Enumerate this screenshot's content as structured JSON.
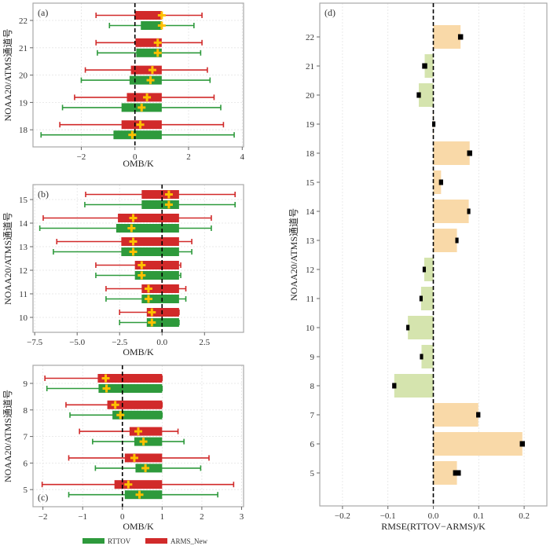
{
  "colors": {
    "rttov": "#2e9a3c",
    "arms": "#d12a2a",
    "mean_marker": "#ffc000",
    "positive_bar": "#f9d9a8",
    "negative_bar": "#d5e4ae",
    "error_bar": "#000000",
    "grid": "#e4e4e4",
    "frame": "#a8a8a8"
  },
  "legend": [
    {
      "key": "rttov",
      "label": "RTTOV"
    },
    {
      "key": "arms",
      "label": "ARMS_New"
    }
  ],
  "chart_data": [
    {
      "type": "boxplot",
      "panel": "(a)",
      "xlabel": "OMB/K",
      "ylabel": "NOAA20/ATMS通道号",
      "xlim": [
        -3.8,
        4.05
      ],
      "xticks": [
        -2,
        0,
        2,
        4
      ],
      "xtick_labels": [
        "−2",
        "0",
        "2",
        "4"
      ],
      "categories": [
        "22",
        "21",
        "20",
        "19",
        "18"
      ],
      "reference_line": 0,
      "series": [
        {
          "name": "ARMS_New",
          "key": "arms",
          "items": [
            {
              "channel": "22",
              "whisker": [
                -1.45,
                2.5
              ],
              "box": [
                0.0,
                1.0
              ],
              "mean": 1.0
            },
            {
              "channel": "21",
              "whisker": [
                -1.45,
                2.5
              ],
              "box": [
                0.02,
                1.0
              ],
              "mean": 0.85
            },
            {
              "channel": "20",
              "whisker": [
                -1.85,
                2.7
              ],
              "box": [
                -0.15,
                1.0
              ],
              "mean": 0.65
            },
            {
              "channel": "19",
              "whisker": [
                -2.25,
                2.95
              ],
              "box": [
                -0.3,
                1.0
              ],
              "mean": 0.45
            },
            {
              "channel": "18",
              "whisker": [
                -2.8,
                3.3
              ],
              "box": [
                -0.5,
                1.0
              ],
              "mean": 0.2
            }
          ]
        },
        {
          "name": "RTTOV",
          "key": "rttov",
          "items": [
            {
              "channel": "22",
              "whisker": [
                -0.95,
                2.2
              ],
              "box": [
                0.22,
                1.0
              ],
              "mean": 1.0
            },
            {
              "channel": "21",
              "whisker": [
                -1.4,
                2.45
              ],
              "box": [
                0.05,
                1.0
              ],
              "mean": 0.85
            },
            {
              "channel": "20",
              "whisker": [
                -2.0,
                2.8
              ],
              "box": [
                -0.2,
                1.0
              ],
              "mean": 0.58
            },
            {
              "channel": "19",
              "whisker": [
                -2.7,
                3.2
              ],
              "box": [
                -0.5,
                1.0
              ],
              "mean": 0.25
            },
            {
              "channel": "18",
              "whisker": [
                -3.5,
                3.7
              ],
              "box": [
                -0.8,
                1.0
              ],
              "mean": -0.1
            }
          ]
        }
      ]
    },
    {
      "type": "boxplot",
      "panel": "(b)",
      "xlabel": "OMB/K",
      "ylabel": "NOAA20/ATMS通道号",
      "xlim": [
        -7.6,
        4.8
      ],
      "xticks": [
        -7.5,
        -5.0,
        -2.5,
        0.0,
        2.5
      ],
      "xtick_labels": [
        "−7.5",
        "−5.0",
        "−2.5",
        "0.0",
        "2.5"
      ],
      "categories": [
        "15",
        "14",
        "13",
        "12",
        "11",
        "10"
      ],
      "reference_line": 0,
      "series": [
        {
          "name": "ARMS_New",
          "key": "arms",
          "items": [
            {
              "channel": "15",
              "whisker": [
                -4.5,
                4.3
              ],
              "box": [
                -1.2,
                1.0
              ],
              "mean": 0.4
            },
            {
              "channel": "14",
              "whisker": [
                -7.0,
                2.9
              ],
              "box": [
                -2.6,
                1.0
              ],
              "mean": -1.7
            },
            {
              "channel": "13",
              "whisker": [
                -6.2,
                1.75
              ],
              "box": [
                -2.4,
                1.0
              ],
              "mean": -1.7
            },
            {
              "channel": "12",
              "whisker": [
                -3.9,
                1.1
              ],
              "box": [
                -1.6,
                1.0
              ],
              "mean": -1.2
            },
            {
              "channel": "11",
              "whisker": [
                -3.3,
                1.4
              ],
              "box": [
                -1.2,
                1.0
              ],
              "mean": -0.8
            },
            {
              "channel": "10",
              "whisker": [
                -2.5,
                1.0
              ],
              "box": [
                -0.9,
                1.0
              ],
              "mean": -0.6
            }
          ]
        },
        {
          "name": "RTTOV",
          "key": "rttov",
          "items": [
            {
              "channel": "15",
              "whisker": [
                -4.55,
                4.3
              ],
              "box": [
                -1.2,
                1.0
              ],
              "mean": 0.4
            },
            {
              "channel": "14",
              "whisker": [
                -7.2,
                2.9
              ],
              "box": [
                -2.7,
                1.0
              ],
              "mean": -1.8
            },
            {
              "channel": "13",
              "whisker": [
                -6.4,
                1.75
              ],
              "box": [
                -2.4,
                1.0
              ],
              "mean": -1.7
            },
            {
              "channel": "12",
              "whisker": [
                -3.9,
                1.1
              ],
              "box": [
                -1.6,
                1.0
              ],
              "mean": -1.2
            },
            {
              "channel": "11",
              "whisker": [
                -3.3,
                1.4
              ],
              "box": [
                -1.2,
                1.0
              ],
              "mean": -0.8
            },
            {
              "channel": "10",
              "whisker": [
                -2.5,
                1.0
              ],
              "box": [
                -0.9,
                1.0
              ],
              "mean": -0.6
            }
          ]
        }
      ]
    },
    {
      "type": "boxplot",
      "panel": "(c)",
      "xlabel": "OMB/K",
      "ylabel": "NOAA20/ATMS通道号",
      "xlim": [
        -2.25,
        3.05
      ],
      "xticks": [
        -2,
        -1,
        0,
        1,
        2,
        3
      ],
      "xtick_labels": [
        "−2",
        "−1",
        "0",
        "1",
        "2",
        "3"
      ],
      "categories": [
        "9",
        "8",
        "7",
        "6",
        "5"
      ],
      "reference_line": 0,
      "series": [
        {
          "name": "ARMS_New",
          "key": "arms",
          "items": [
            {
              "channel": "9",
              "whisker": [
                -1.95,
                1.0
              ],
              "box": [
                -0.62,
                1.0
              ],
              "mean": -0.42
            },
            {
              "channel": "8",
              "whisker": [
                -1.42,
                1.0
              ],
              "box": [
                -0.38,
                1.0
              ],
              "mean": -0.18
            },
            {
              "channel": "7",
              "whisker": [
                -1.08,
                1.4
              ],
              "box": [
                0.18,
                1.0
              ],
              "mean": 0.4
            },
            {
              "channel": "6",
              "whisker": [
                -1.35,
                2.18
              ],
              "box": [
                0.06,
                1.0
              ],
              "mean": 0.3
            },
            {
              "channel": "5",
              "whisker": [
                -2.02,
                2.8
              ],
              "box": [
                -0.2,
                1.0
              ],
              "mean": 0.15
            }
          ]
        },
        {
          "name": "RTTOV",
          "key": "rttov",
          "items": [
            {
              "channel": "9",
              "whisker": [
                -1.9,
                1.0
              ],
              "box": [
                -0.6,
                1.0
              ],
              "mean": -0.4
            },
            {
              "channel": "8",
              "whisker": [
                -1.32,
                1.0
              ],
              "box": [
                -0.25,
                1.0
              ],
              "mean": -0.05
            },
            {
              "channel": "7",
              "whisker": [
                -0.75,
                1.55
              ],
              "box": [
                0.3,
                1.0
              ],
              "mean": 0.53
            },
            {
              "channel": "6",
              "whisker": [
                -0.68,
                1.97
              ],
              "box": [
                0.33,
                1.0
              ],
              "mean": 0.58
            },
            {
              "channel": "5",
              "whisker": [
                -1.35,
                2.4
              ],
              "box": [
                0.06,
                1.0
              ],
              "mean": 0.43
            }
          ]
        }
      ]
    },
    {
      "type": "bar",
      "orientation": "horizontal",
      "panel": "(d)",
      "xlabel": "RMSE(RTTOV−ARMS)/K",
      "ylabel": "NOAA20/ATMS通道号",
      "xlim": [
        -0.25,
        0.25
      ],
      "xticks": [
        -0.2,
        -0.1,
        0.0,
        0.1,
        0.2
      ],
      "xtick_labels": [
        "−0.2",
        "−0.1",
        "0.0",
        "0.1",
        "0.2"
      ],
      "reference_line": 0,
      "categories": [
        "22",
        "21",
        "20",
        "19",
        "18",
        "15",
        "14",
        "13",
        "12",
        "11",
        "10",
        "9",
        "8",
        "7",
        "6",
        "5"
      ],
      "values": [
        0.06,
        -0.019,
        -0.032,
        0.001,
        0.08,
        0.017,
        0.078,
        0.052,
        -0.02,
        -0.027,
        -0.056,
        -0.026,
        -0.086,
        0.099,
        0.196,
        0.052
      ],
      "errors": [
        0.003,
        0.003,
        0.002,
        0.001,
        0.003,
        0.002,
        0.001,
        0.001,
        0.001,
        0.001,
        0.001,
        0.001,
        0.002,
        0.002,
        0.003,
        0.006
      ]
    }
  ]
}
